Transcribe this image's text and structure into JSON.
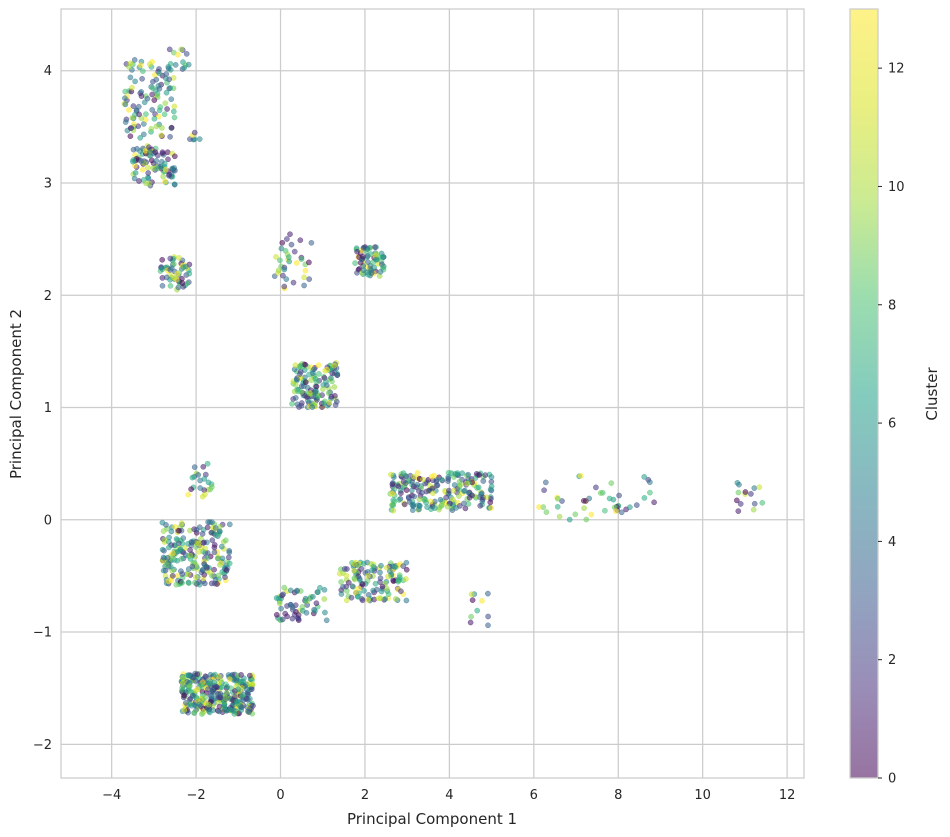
{
  "chart_data": {
    "type": "scatter",
    "title": "",
    "xlabel": "Principal Component 1",
    "ylabel": "Principal Component 2",
    "xlim": [
      -5.2,
      12.4
    ],
    "ylim": [
      -2.3,
      4.55
    ],
    "xticks": [
      -4,
      -2,
      0,
      2,
      4,
      6,
      8,
      10,
      12
    ],
    "yticks": [
      -2,
      -1,
      0,
      1,
      2,
      3,
      4
    ],
    "xtick_labels": [
      "−4",
      "−2",
      "0",
      "2",
      "4",
      "6",
      "8",
      "10",
      "12"
    ],
    "ytick_labels": [
      "−2",
      "−1",
      "0",
      "1",
      "2",
      "3",
      "4"
    ],
    "grid": true,
    "colormap": "viridis",
    "point_alpha": 0.55,
    "colorbar": {
      "label": "Cluster",
      "range": [
        0,
        13
      ],
      "ticks": [
        0,
        2,
        4,
        6,
        8,
        10,
        12
      ],
      "tick_labels": [
        "0",
        "2",
        "4",
        "6",
        "8",
        "10",
        "12"
      ]
    },
    "clusters": [
      {
        "center": [
          -3.1,
          3.75
        ],
        "spread": [
          0.6,
          0.35
        ],
        "n": 110
      },
      {
        "center": [
          -3.0,
          3.15
        ],
        "spread": [
          0.5,
          0.18
        ],
        "n": 90
      },
      {
        "center": [
          -2.4,
          4.1
        ],
        "spread": [
          0.25,
          0.1
        ],
        "n": 12
      },
      {
        "center": [
          -2.0,
          3.4
        ],
        "spread": [
          0.15,
          0.05
        ],
        "n": 6
      },
      {
        "center": [
          -2.5,
          2.2
        ],
        "spread": [
          0.35,
          0.15
        ],
        "n": 55
      },
      {
        "center": [
          0.3,
          2.3
        ],
        "spread": [
          0.45,
          0.25
        ],
        "n": 35
      },
      {
        "center": [
          2.1,
          2.3
        ],
        "spread": [
          0.35,
          0.13
        ],
        "n": 70
      },
      {
        "center": [
          0.8,
          1.2
        ],
        "spread": [
          0.55,
          0.2
        ],
        "n": 140
      },
      {
        "center": [
          3.8,
          0.25
        ],
        "spread": [
          1.2,
          0.17
        ],
        "n": 220
      },
      {
        "center": [
          7.5,
          0.2
        ],
        "spread": [
          1.4,
          0.2
        ],
        "n": 45
      },
      {
        "center": [
          11.1,
          0.2
        ],
        "spread": [
          0.35,
          0.15
        ],
        "n": 14
      },
      {
        "center": [
          -1.9,
          0.35
        ],
        "spread": [
          0.3,
          0.15
        ],
        "n": 22
      },
      {
        "center": [
          -2.0,
          -0.3
        ],
        "spread": [
          0.8,
          0.28
        ],
        "n": 220
      },
      {
        "center": [
          0.5,
          -0.75
        ],
        "spread": [
          0.6,
          0.15
        ],
        "n": 60
      },
      {
        "center": [
          2.2,
          -0.55
        ],
        "spread": [
          0.8,
          0.17
        ],
        "n": 130
      },
      {
        "center": [
          4.8,
          -0.8
        ],
        "spread": [
          0.3,
          0.15
        ],
        "n": 10
      },
      {
        "center": [
          -1.5,
          -1.55
        ],
        "spread": [
          0.85,
          0.18
        ],
        "n": 330
      }
    ]
  }
}
